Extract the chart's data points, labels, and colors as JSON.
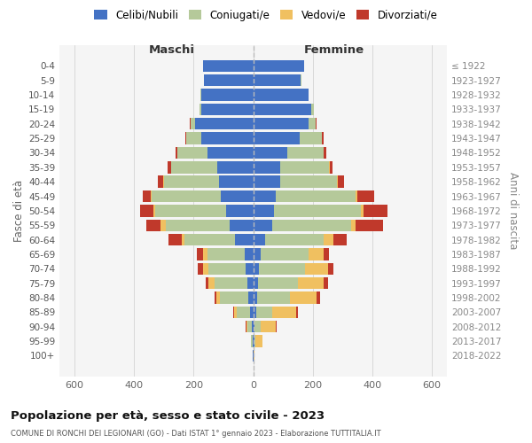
{
  "age_groups": [
    "0-4",
    "5-9",
    "10-14",
    "15-19",
    "20-24",
    "25-29",
    "30-34",
    "35-39",
    "40-44",
    "45-49",
    "50-54",
    "55-59",
    "60-64",
    "65-69",
    "70-74",
    "75-79",
    "80-84",
    "85-89",
    "90-94",
    "95-99",
    "100+"
  ],
  "birth_years": [
    "2018-2022",
    "2013-2017",
    "2008-2012",
    "2003-2007",
    "1998-2002",
    "1993-1997",
    "1988-1992",
    "1983-1987",
    "1978-1982",
    "1973-1977",
    "1968-1972",
    "1963-1967",
    "1958-1962",
    "1953-1957",
    "1948-1952",
    "1943-1947",
    "1938-1942",
    "1933-1937",
    "1928-1932",
    "1923-1927",
    "≤ 1922"
  ],
  "males": {
    "celibi": [
      170,
      165,
      175,
      175,
      195,
      175,
      155,
      120,
      115,
      110,
      90,
      80,
      60,
      30,
      25,
      20,
      18,
      10,
      5,
      3,
      2
    ],
    "coniugati": [
      0,
      1,
      2,
      5,
      15,
      50,
      100,
      155,
      185,
      230,
      240,
      215,
      170,
      125,
      125,
      110,
      95,
      45,
      15,
      4,
      1
    ],
    "vedovi": [
      0,
      0,
      0,
      0,
      1,
      1,
      1,
      2,
      3,
      5,
      5,
      15,
      10,
      15,
      20,
      20,
      12,
      8,
      4,
      0,
      0
    ],
    "divorziati": [
      0,
      0,
      0,
      0,
      2,
      3,
      5,
      12,
      18,
      25,
      45,
      50,
      45,
      20,
      15,
      10,
      5,
      3,
      2,
      0,
      0
    ]
  },
  "females": {
    "nubili": [
      170,
      160,
      185,
      195,
      185,
      155,
      115,
      90,
      90,
      75,
      70,
      65,
      40,
      25,
      20,
      15,
      14,
      10,
      5,
      4,
      2
    ],
    "coniugate": [
      0,
      1,
      2,
      8,
      25,
      75,
      120,
      165,
      190,
      270,
      290,
      265,
      195,
      160,
      155,
      135,
      110,
      55,
      20,
      4,
      0
    ],
    "vedove": [
      0,
      0,
      0,
      0,
      1,
      1,
      2,
      2,
      3,
      5,
      10,
      15,
      35,
      50,
      75,
      85,
      90,
      80,
      50,
      22,
      2
    ],
    "divorziate": [
      0,
      0,
      0,
      0,
      2,
      5,
      8,
      10,
      22,
      55,
      80,
      90,
      45,
      20,
      20,
      15,
      10,
      5,
      3,
      0,
      0
    ]
  },
  "colors": {
    "celibi_nubili": "#4472c4",
    "coniugati": "#b5c99a",
    "vedovi": "#f0c060",
    "divorziati": "#c0392b"
  },
  "xlim": 650,
  "title": "Popolazione per età, sesso e stato civile - 2023",
  "subtitle": "COMUNE DI RONCHI DEI LEGIONARI (GO) - Dati ISTAT 1° gennaio 2023 - Elaborazione TUTTITALIA.IT",
  "xlabel_left": "Maschi",
  "xlabel_right": "Femmine",
  "ylabel_left": "Fasce di età",
  "ylabel_right": "Anni di nascita",
  "legend_labels": [
    "Celibi/Nubili",
    "Coniugati/e",
    "Vedovi/e",
    "Divorziati/e"
  ],
  "background_color": "#ffffff",
  "plot_bg": "#f5f5f5",
  "grid_color": "#cccccc"
}
